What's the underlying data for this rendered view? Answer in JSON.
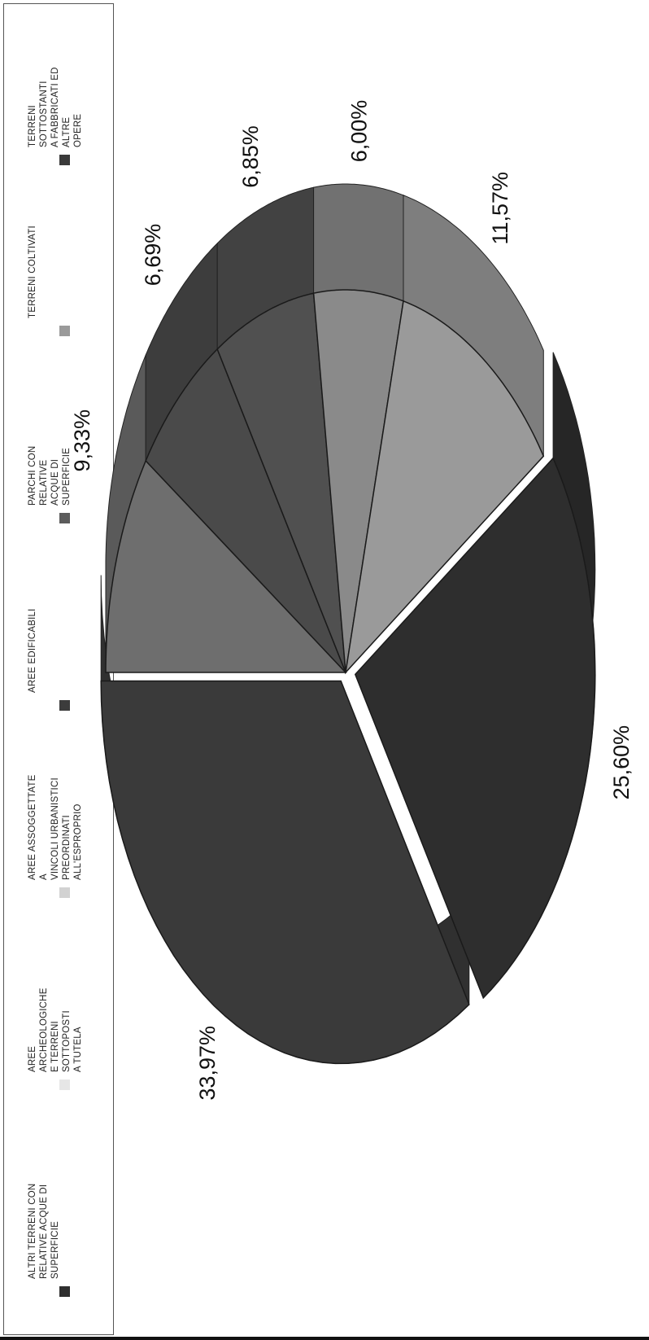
{
  "chart_data": {
    "type": "pie",
    "title": "",
    "slices": [
      {
        "label": "ALTRI TERRENI CON RELATIVE ACQUE DI SUPERFICIE",
        "value": 33.97,
        "display": "33,97%",
        "color": "#3a3a3a"
      },
      {
        "label": "AREE ARCHEOLOGICHE E TERRENI SOTTOPOSTI A TUTELA",
        "value": 9.33,
        "display": "9,33%",
        "color": "#6e6e6e"
      },
      {
        "label": "AREE ASSOGGETTATE A VINCOLI URBANISTICI PREORDINATI ALL'ESPROPRIO",
        "value": 6.69,
        "display": "6,69%",
        "color": "#4a4a4a"
      },
      {
        "label": "AREE EDIFICABILI",
        "value": 6.85,
        "display": "6,85%",
        "color": "#505050"
      },
      {
        "label": "PARCHI CON RELATIVE ACQUE DI SUPERFICIE",
        "value": 6.0,
        "display": "6,00%",
        "color": "#8a8a8a"
      },
      {
        "label": "TERRENI COLTIVATI",
        "value": 11.57,
        "display": "11,57%",
        "color": "#9a9a9a"
      },
      {
        "label": "TERRENI SOTTOSTANTI A FABBRICATI ED ALTRE OPERE",
        "value": 25.6,
        "display": "25,60%",
        "color": "#2e2e2e"
      }
    ],
    "legend_placement": "top"
  },
  "legend": [
    {
      "label": "ALTRI TERRENI CON\nRELATIVE ACQUE DI\nSUPERFICIE",
      "color": "#2f2f2f"
    },
    {
      "label": "AREE ARCHEOLOGICHE\nE TERRENI SOTTOPOSTI\nA TUTELA",
      "color": "#e6e6e6"
    },
    {
      "label": "AREE ASSOGGETTATE A\nVINCOLI URBANISTICI\nPREORDINATI\nALL'ESPROPRIO",
      "color": "#d2d2d2"
    },
    {
      "label": "AREE EDIFICABILI",
      "color": "#3c3c3c"
    },
    {
      "label": "PARCHI CON RELATIVE\nACQUE DI SUPERFICIE",
      "color": "#5c5c5c"
    },
    {
      "label": "TERRENI COLTIVATI",
      "color": "#9a9a9a"
    },
    {
      "label": "TERRENI SOTTOSTANTI\nA FABBRICATI ED ALTRE\nOPERE",
      "color": "#3a3a3a"
    }
  ]
}
